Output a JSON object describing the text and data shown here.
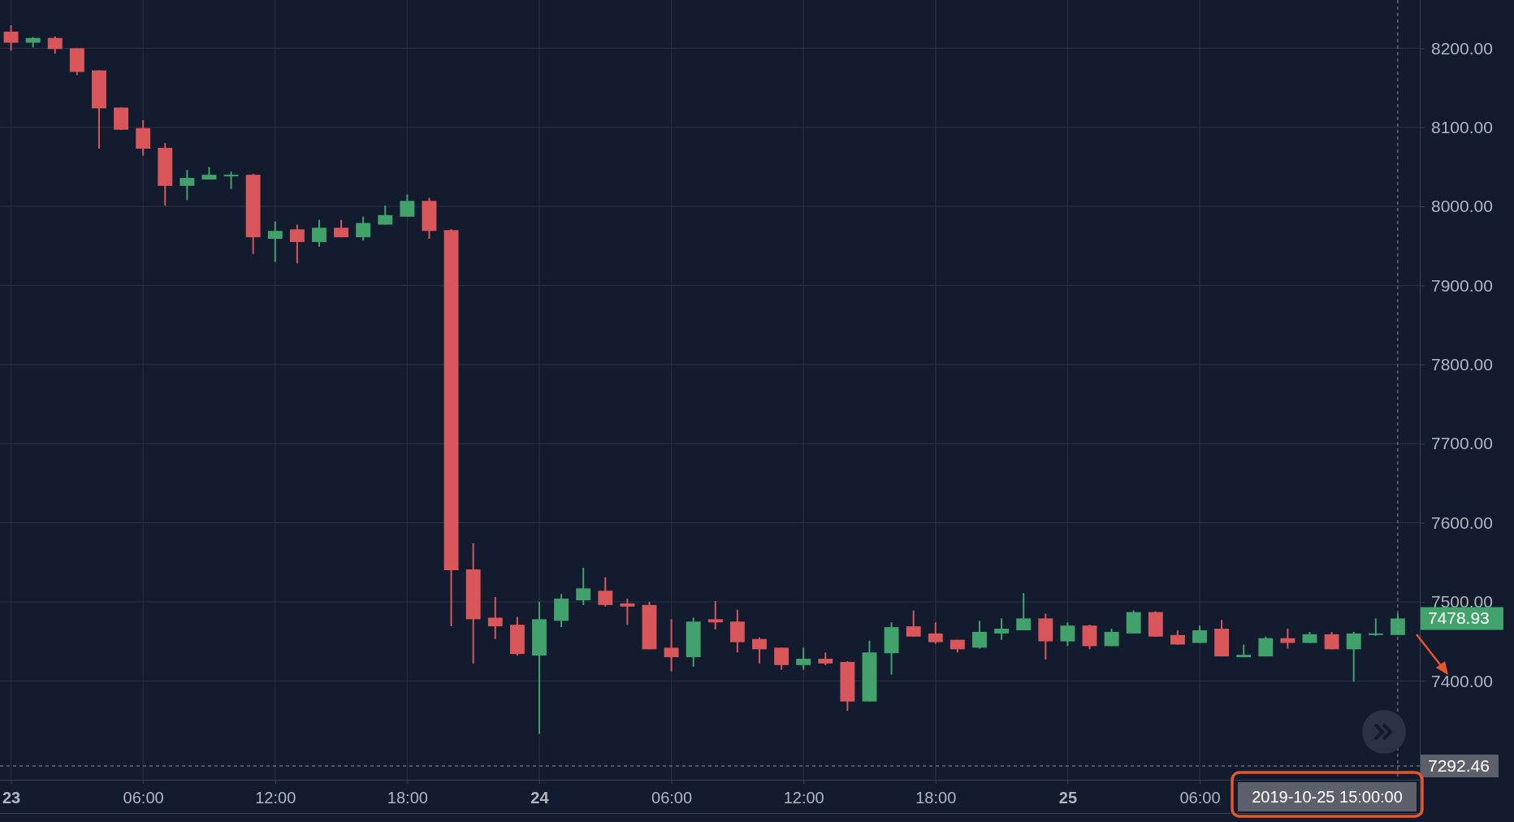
{
  "chart_data": {
    "type": "candlestick",
    "x": [
      "2019-10-23T00:00",
      "2019-10-23T01:00",
      "2019-10-23T02:00",
      "2019-10-23T03:00",
      "2019-10-23T04:00",
      "2019-10-23T05:00",
      "2019-10-23T06:00",
      "2019-10-23T07:00",
      "2019-10-23T08:00",
      "2019-10-23T09:00",
      "2019-10-23T10:00",
      "2019-10-23T11:00",
      "2019-10-23T12:00",
      "2019-10-23T13:00",
      "2019-10-23T14:00",
      "2019-10-23T15:00",
      "2019-10-23T16:00",
      "2019-10-23T17:00",
      "2019-10-23T18:00",
      "2019-10-23T19:00",
      "2019-10-23T20:00",
      "2019-10-23T21:00",
      "2019-10-23T22:00",
      "2019-10-23T23:00",
      "2019-10-24T00:00",
      "2019-10-24T01:00",
      "2019-10-24T02:00",
      "2019-10-24T03:00",
      "2019-10-24T04:00",
      "2019-10-24T05:00",
      "2019-10-24T06:00",
      "2019-10-24T07:00",
      "2019-10-24T08:00",
      "2019-10-24T09:00",
      "2019-10-24T10:00",
      "2019-10-24T11:00",
      "2019-10-24T12:00",
      "2019-10-24T13:00",
      "2019-10-24T14:00",
      "2019-10-24T15:00",
      "2019-10-24T16:00",
      "2019-10-24T17:00",
      "2019-10-24T18:00",
      "2019-10-24T19:00",
      "2019-10-24T20:00",
      "2019-10-24T21:00",
      "2019-10-24T22:00",
      "2019-10-24T23:00",
      "2019-10-25T00:00",
      "2019-10-25T01:00",
      "2019-10-25T02:00",
      "2019-10-25T03:00",
      "2019-10-25T04:00",
      "2019-10-25T05:00",
      "2019-10-25T06:00",
      "2019-10-25T07:00",
      "2019-10-25T08:00",
      "2019-10-25T09:00",
      "2019-10-25T10:00",
      "2019-10-25T11:00",
      "2019-10-25T12:00",
      "2019-10-25T13:00",
      "2019-10-25T14:00",
      "2019-10-25T15:00"
    ],
    "ohlc": [
      [
        8221,
        8229,
        8197,
        8207
      ],
      [
        8207,
        8214,
        8201,
        8213
      ],
      [
        8213,
        8215,
        8193,
        8199
      ],
      [
        8200,
        8200,
        8166,
        8170
      ],
      [
        8172,
        8172,
        8073,
        8124
      ],
      [
        8125,
        8125,
        8097,
        8097
      ],
      [
        8099,
        8109,
        8064,
        8073
      ],
      [
        8074,
        8080,
        8001,
        8026
      ],
      [
        8026,
        8046,
        8008,
        8036
      ],
      [
        8034,
        8050,
        8034,
        8040
      ],
      [
        8038,
        8044,
        8022,
        8040
      ],
      [
        8040,
        8041,
        7940,
        7961
      ],
      [
        7959,
        7981,
        7930,
        7969
      ],
      [
        7971,
        7977,
        7928,
        7955
      ],
      [
        7955,
        7983,
        7949,
        7973
      ],
      [
        7973,
        7983,
        7961,
        7961
      ],
      [
        7961,
        7987,
        7957,
        7979
      ],
      [
        7977,
        8001,
        7977,
        7989
      ],
      [
        7987,
        8015,
        7987,
        8007
      ],
      [
        8007,
        8011,
        7959,
        7969
      ],
      [
        7970,
        7971,
        7469,
        7540
      ],
      [
        7541,
        7574,
        7422,
        7478
      ],
      [
        7480,
        7506,
        7453,
        7469
      ],
      [
        7471,
        7481,
        7432,
        7434
      ],
      [
        7432,
        7500,
        7333,
        7478
      ],
      [
        7476,
        7510,
        7468,
        7504
      ],
      [
        7502,
        7543,
        7496,
        7517
      ],
      [
        7514,
        7531,
        7494,
        7496
      ],
      [
        7498,
        7504,
        7471,
        7494
      ],
      [
        7496,
        7500,
        7440,
        7440
      ],
      [
        7442,
        7478,
        7412,
        7430
      ],
      [
        7430,
        7480,
        7418,
        7475
      ],
      [
        7478,
        7501,
        7465,
        7474
      ],
      [
        7475,
        7490,
        7436,
        7449
      ],
      [
        7453,
        7455,
        7422,
        7440
      ],
      [
        7442,
        7442,
        7414,
        7420
      ],
      [
        7420,
        7442,
        7414,
        7428
      ],
      [
        7428,
        7436,
        7420,
        7422
      ],
      [
        7424,
        7425,
        7362,
        7374
      ],
      [
        7374,
        7451,
        7374,
        7436
      ],
      [
        7435,
        7474,
        7408,
        7468
      ],
      [
        7469,
        7489,
        7456,
        7456
      ],
      [
        7460,
        7474,
        7447,
        7449
      ],
      [
        7452,
        7452,
        7436,
        7440
      ],
      [
        7442,
        7476,
        7441,
        7462
      ],
      [
        7460,
        7479,
        7452,
        7466
      ],
      [
        7464,
        7511,
        7464,
        7479
      ],
      [
        7479,
        7485,
        7427,
        7450
      ],
      [
        7450,
        7474,
        7444,
        7470
      ],
      [
        7470,
        7471,
        7440,
        7444
      ],
      [
        7444,
        7466,
        7444,
        7462
      ],
      [
        7460,
        7489,
        7460,
        7487
      ],
      [
        7487,
        7488,
        7456,
        7456
      ],
      [
        7458,
        7464,
        7446,
        7446
      ],
      [
        7448,
        7470,
        7448,
        7464
      ],
      [
        7466,
        7477,
        7431,
        7431
      ],
      [
        7430,
        7446,
        7430,
        7433
      ],
      [
        7431,
        7456,
        7431,
        7454
      ],
      [
        7454,
        7466,
        7441,
        7448
      ],
      [
        7448,
        7462,
        7448,
        7459
      ],
      [
        7459,
        7462,
        7440,
        7440
      ],
      [
        7440,
        7462,
        7399,
        7460
      ],
      [
        7458,
        7479,
        7457,
        7460
      ],
      [
        7458,
        7485,
        7458,
        7478.93
      ]
    ],
    "colors": [
      "#d9575a",
      "#41a36b",
      "#d9575a",
      "#d9575a",
      "#d9575a",
      "#d9575a",
      "#d9575a",
      "#d9575a",
      "#41a36b",
      "#41a36b",
      "#41a36b",
      "#d9575a",
      "#41a36b",
      "#d9575a",
      "#41a36b",
      "#d9575a",
      "#41a36b",
      "#41a36b",
      "#41a36b",
      "#d9575a",
      "#d9575a",
      "#d9575a",
      "#d9575a",
      "#d9575a",
      "#41a36b",
      "#41a36b",
      "#41a36b",
      "#d9575a",
      "#d9575a",
      "#d9575a",
      "#d9575a",
      "#41a36b",
      "#d9575a",
      "#d9575a",
      "#d9575a",
      "#d9575a",
      "#41a36b",
      "#d9575a",
      "#d9575a",
      "#41a36b",
      "#41a36b",
      "#d9575a",
      "#d9575a",
      "#d9575a",
      "#41a36b",
      "#41a36b",
      "#41a36b",
      "#d9575a",
      "#41a36b",
      "#d9575a",
      "#41a36b",
      "#41a36b",
      "#d9575a",
      "#d9575a",
      "#41a36b",
      "#d9575a",
      "#41a36b",
      "#41a36b",
      "#d9575a",
      "#41a36b",
      "#d9575a",
      "#41a36b",
      "#41a36b",
      "#41a36b"
    ],
    "xlim": [
      "2019-10-22T23:30",
      "2019-10-25T16:00"
    ],
    "xticks": [
      {
        "value": "2019-10-23T00:00",
        "label": "23"
      },
      {
        "value": "2019-10-23T06:00",
        "label": "06:00"
      },
      {
        "value": "2019-10-23T12:00",
        "label": "12:00"
      },
      {
        "value": "2019-10-23T18:00",
        "label": "18:00"
      },
      {
        "value": "2019-10-24T00:00",
        "label": "24"
      },
      {
        "value": "2019-10-24T06:00",
        "label": "06:00"
      },
      {
        "value": "2019-10-24T12:00",
        "label": "12:00"
      },
      {
        "value": "2019-10-24T18:00",
        "label": "18:00"
      },
      {
        "value": "2019-10-25T00:00",
        "label": "25"
      },
      {
        "value": "2019-10-25T06:00",
        "label": "06:00"
      }
    ],
    "ylim": [
      7275,
      8261
    ],
    "yticks": [
      {
        "value": 7400,
        "label": "7400.00"
      },
      {
        "value": 7500,
        "label": "7500.00"
      },
      {
        "value": 7600,
        "label": "7600.00"
      },
      {
        "value": 7700,
        "label": "7700.00"
      },
      {
        "value": 7800,
        "label": "7800.00"
      },
      {
        "value": 7900,
        "label": "7900.00"
      },
      {
        "value": 8000,
        "label": "8000.00"
      },
      {
        "value": 8100,
        "label": "8100.00"
      },
      {
        "value": 8200,
        "label": "8200.00"
      }
    ],
    "grid": true,
    "ref_lines": [
      {
        "axis": "y",
        "value": 7292.46,
        "label": "7292.46",
        "color": "#8a8f9a",
        "line_style": "dashed"
      },
      {
        "axis": "x",
        "value": "2019-10-25T15:00",
        "label": "2019-10-25 15:00:00",
        "color": "#8a8f9a",
        "line_style": "dashed"
      }
    ],
    "annotations": [
      {
        "text": "7478.93",
        "x": "2019-10-25T15:00",
        "y": 7478.93
      }
    ]
  }
}
